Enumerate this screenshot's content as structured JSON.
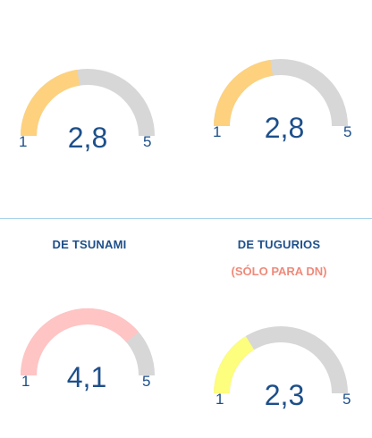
{
  "chart_data": [
    {
      "type": "gauge",
      "value": 2.8,
      "value_label": "2,8",
      "min_label": "1",
      "max_label": "5",
      "range": [
        1,
        5
      ],
      "color": "#fdd17e",
      "track_color": "#d7d7d7"
    },
    {
      "type": "gauge",
      "value": 2.8,
      "value_label": "2,8",
      "min_label": "1",
      "max_label": "5",
      "range": [
        1,
        5
      ],
      "color": "#fdd17e",
      "track_color": "#d7d7d7"
    },
    {
      "type": "gauge",
      "title": "DE TSUNAMI",
      "value": 4.1,
      "value_label": "4,1",
      "min_label": "1",
      "max_label": "5",
      "range": [
        1,
        5
      ],
      "color": "#ffc4c4",
      "track_color": "#d7d7d7"
    },
    {
      "type": "gauge",
      "title": "DE TUGURIOS",
      "subtitle": "(SÓLO PARA DN)",
      "value": 2.3,
      "value_label": "2,3",
      "min_label": "1",
      "max_label": "5",
      "range": [
        1,
        5
      ],
      "color": "#fdfd7e",
      "track_color": "#d7d7d7"
    }
  ]
}
